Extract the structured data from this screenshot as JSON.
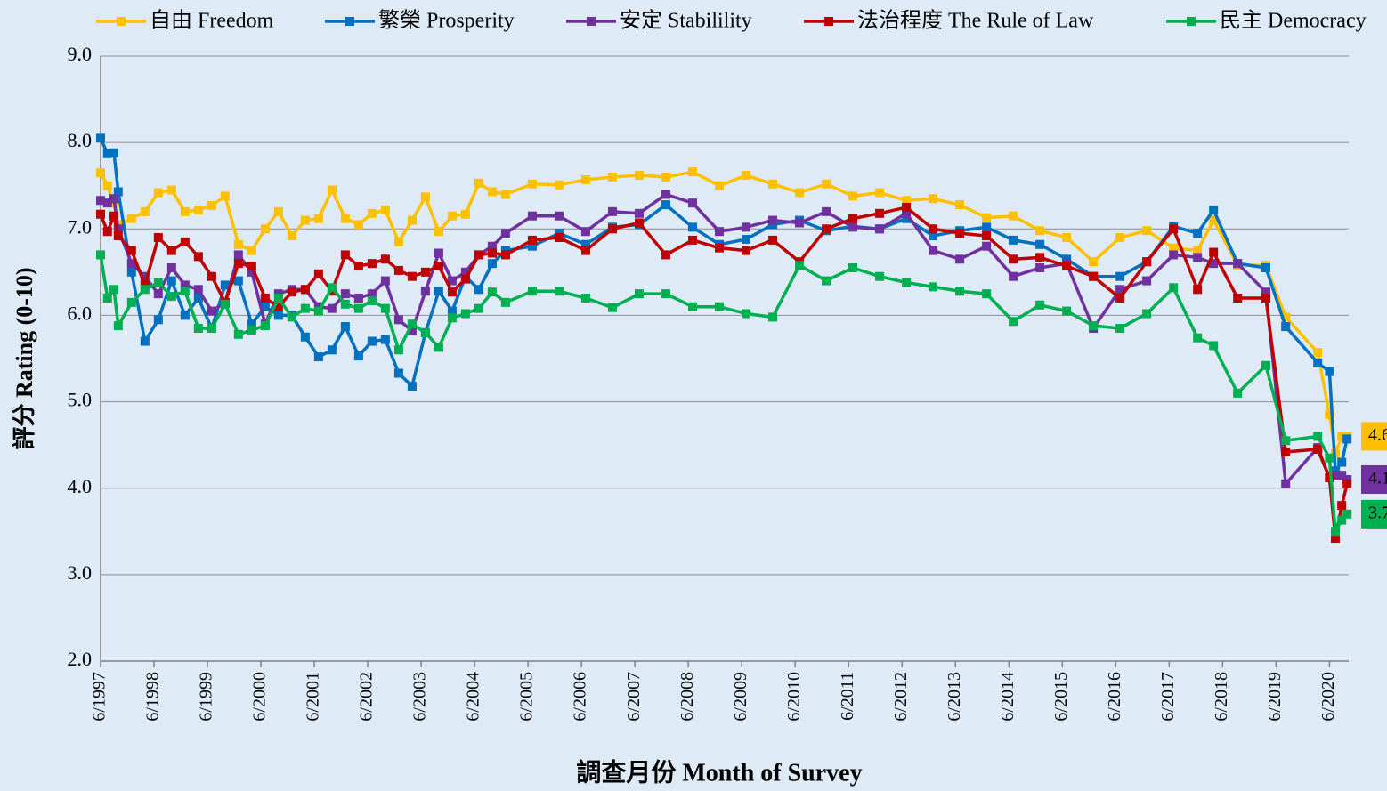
{
  "chart_data": {
    "type": "line",
    "x_label": "調查月份 Month of Survey",
    "y_label": "評分 Rating (0-10)",
    "x": [
      1997.42,
      1997.55,
      1997.67,
      1997.75,
      1998.0,
      1998.25,
      1998.5,
      1998.75,
      1999.0,
      1999.25,
      1999.5,
      1999.75,
      2000.0,
      2000.25,
      2000.5,
      2000.75,
      2001.0,
      2001.25,
      2001.5,
      2001.75,
      2002.0,
      2002.25,
      2002.5,
      2002.75,
      2003.0,
      2003.25,
      2003.5,
      2003.75,
      2004.0,
      2004.25,
      2004.5,
      2004.75,
      2005.0,
      2005.5,
      2006.0,
      2006.5,
      2007.0,
      2007.5,
      2008.0,
      2008.5,
      2009.0,
      2009.5,
      2010.0,
      2010.5,
      2011.0,
      2011.5,
      2012.0,
      2012.5,
      2013.0,
      2013.5,
      2014.0,
      2014.5,
      2015.0,
      2015.5,
      2016.0,
      2016.5,
      2017.0,
      2017.5,
      2017.95,
      2018.25,
      2018.7,
      2019.23,
      2019.6,
      2020.2,
      2020.42,
      2020.53,
      2020.65,
      2020.75
    ],
    "series": [
      {
        "name": "自由 Freedom",
        "color": "#ffc000",
        "label_last": true,
        "values": [
          7.65,
          7.5,
          7.3,
          7.05,
          7.12,
          7.2,
          7.42,
          7.45,
          7.2,
          7.22,
          7.27,
          7.38,
          6.82,
          6.75,
          7.0,
          7.2,
          6.92,
          7.1,
          7.12,
          7.45,
          7.12,
          7.05,
          7.18,
          7.22,
          6.85,
          7.1,
          7.37,
          6.97,
          7.15,
          7.17,
          7.53,
          7.43,
          7.4,
          7.52,
          7.51,
          7.57,
          7.6,
          7.62,
          7.6,
          7.66,
          7.5,
          7.62,
          7.52,
          7.42,
          7.52,
          7.38,
          7.42,
          7.33,
          7.35,
          7.28,
          7.13,
          7.15,
          6.98,
          6.9,
          6.62,
          6.9,
          6.98,
          6.78,
          6.75,
          7.1,
          6.58,
          6.58,
          5.98,
          5.57,
          4.85,
          4.4,
          4.6,
          4.6
        ]
      },
      {
        "name": "繁榮 Prosperity",
        "color": "#0070c0",
        "label_last": false,
        "values": [
          8.05,
          7.87,
          7.88,
          7.43,
          6.5,
          5.7,
          5.95,
          6.4,
          6.0,
          6.2,
          5.85,
          6.35,
          6.4,
          5.9,
          6.1,
          6.0,
          6.0,
          5.75,
          5.52,
          5.6,
          5.87,
          5.53,
          5.7,
          5.72,
          5.33,
          5.18,
          5.8,
          6.28,
          6.05,
          6.45,
          6.3,
          6.6,
          6.75,
          6.8,
          6.95,
          6.82,
          7.02,
          7.05,
          7.28,
          7.02,
          6.82,
          6.88,
          7.05,
          7.1,
          6.98,
          7.03,
          7.0,
          7.12,
          6.92,
          6.98,
          7.02,
          6.87,
          6.82,
          6.65,
          6.45,
          6.45,
          6.62,
          7.03,
          6.95,
          7.22,
          6.6,
          6.55,
          5.87,
          5.45,
          5.35,
          4.2,
          4.3,
          4.57
        ]
      },
      {
        "name": "安定 Stabilility",
        "color": "#7030a0",
        "label_last": true,
        "values": [
          7.33,
          7.3,
          7.35,
          7.0,
          6.6,
          6.45,
          6.25,
          6.55,
          6.35,
          6.3,
          6.05,
          6.15,
          6.7,
          6.5,
          5.9,
          6.25,
          6.3,
          6.3,
          6.1,
          6.08,
          6.25,
          6.2,
          6.25,
          6.4,
          5.95,
          5.82,
          6.28,
          6.72,
          6.4,
          6.5,
          6.7,
          6.8,
          6.95,
          7.15,
          7.15,
          6.97,
          7.2,
          7.18,
          7.4,
          7.3,
          6.97,
          7.02,
          7.1,
          7.07,
          7.2,
          7.02,
          7.0,
          7.18,
          6.75,
          6.65,
          6.8,
          6.45,
          6.55,
          6.6,
          5.85,
          6.3,
          6.4,
          6.7,
          6.67,
          6.6,
          6.6,
          6.27,
          4.05,
          4.47,
          4.12,
          4.15,
          4.15,
          4.1
        ]
      },
      {
        "name": "法治程度 The Rule of Law",
        "color": "#c00000",
        "label_last": false,
        "values": [
          7.17,
          6.97,
          7.15,
          6.92,
          6.75,
          6.35,
          6.9,
          6.75,
          6.85,
          6.68,
          6.45,
          6.15,
          6.6,
          6.57,
          6.2,
          6.1,
          6.27,
          6.3,
          6.48,
          6.28,
          6.7,
          6.57,
          6.6,
          6.65,
          6.52,
          6.45,
          6.5,
          6.57,
          6.27,
          6.42,
          6.7,
          6.72,
          6.7,
          6.87,
          6.9,
          6.75,
          7.0,
          7.07,
          6.7,
          6.87,
          6.78,
          6.75,
          6.87,
          6.62,
          7.0,
          7.12,
          7.18,
          7.25,
          7.0,
          6.95,
          6.92,
          6.65,
          6.67,
          6.57,
          6.45,
          6.2,
          6.62,
          7.0,
          6.3,
          6.73,
          6.2,
          6.2,
          4.42,
          4.45,
          4.12,
          3.42,
          3.8,
          4.05
        ]
      },
      {
        "name": "民主 Democracy",
        "color": "#00b050",
        "label_last": true,
        "values": [
          6.7,
          6.2,
          6.3,
          5.88,
          6.15,
          6.3,
          6.38,
          6.22,
          6.28,
          5.85,
          5.85,
          6.13,
          5.78,
          5.83,
          5.88,
          6.2,
          5.98,
          6.08,
          6.05,
          6.32,
          6.13,
          6.08,
          6.17,
          6.08,
          5.6,
          5.9,
          5.8,
          5.63,
          5.97,
          6.02,
          6.08,
          6.27,
          6.15,
          6.28,
          6.28,
          6.2,
          6.09,
          6.25,
          6.25,
          6.1,
          6.1,
          6.02,
          5.98,
          6.58,
          6.4,
          6.55,
          6.45,
          6.38,
          6.33,
          6.28,
          6.25,
          5.93,
          6.12,
          6.05,
          5.88,
          5.85,
          6.02,
          6.32,
          5.74,
          5.65,
          5.1,
          5.42,
          4.55,
          4.6,
          4.35,
          3.5,
          3.63,
          3.7
        ]
      }
    ],
    "xlim": [
      1997.42,
      2020.78
    ],
    "xticks": [
      {
        "value": 1997.42,
        "label": "6/1997"
      },
      {
        "value": 1998.42,
        "label": "6/1998"
      },
      {
        "value": 1999.42,
        "label": "6/1999"
      },
      {
        "value": 2000.42,
        "label": "6/2000"
      },
      {
        "value": 2001.42,
        "label": "6/2001"
      },
      {
        "value": 2002.42,
        "label": "6/2002"
      },
      {
        "value": 2003.42,
        "label": "6/2003"
      },
      {
        "value": 2004.42,
        "label": "6/2004"
      },
      {
        "value": 2005.42,
        "label": "6/2005"
      },
      {
        "value": 2006.42,
        "label": "6/2006"
      },
      {
        "value": 2007.42,
        "label": "6/2007"
      },
      {
        "value": 2008.42,
        "label": "6/2008"
      },
      {
        "value": 2009.42,
        "label": "6/2009"
      },
      {
        "value": 2010.42,
        "label": "6/2010"
      },
      {
        "value": 2011.42,
        "label": "6/2011"
      },
      {
        "value": 2012.42,
        "label": "6/2012"
      },
      {
        "value": 2013.42,
        "label": "6/2013"
      },
      {
        "value": 2014.42,
        "label": "6/2014"
      },
      {
        "value": 2015.42,
        "label": "6/2015"
      },
      {
        "value": 2016.42,
        "label": "6/2016"
      },
      {
        "value": 2017.42,
        "label": "6/2017"
      },
      {
        "value": 2018.42,
        "label": "6/2018"
      },
      {
        "value": 2019.42,
        "label": "6/2019"
      },
      {
        "value": 2020.42,
        "label": "6/2020"
      }
    ],
    "ylim": [
      2,
      9
    ],
    "yticks": [
      {
        "value": 2,
        "label": "2.0"
      },
      {
        "value": 3,
        "label": "3.0"
      },
      {
        "value": 4,
        "label": "4.0"
      },
      {
        "value": 5,
        "label": "5.0"
      },
      {
        "value": 6,
        "label": "6.0"
      },
      {
        "value": 7,
        "label": "7.0"
      },
      {
        "value": 8,
        "label": "8.0"
      },
      {
        "value": 9,
        "label": "9.0"
      }
    ],
    "grid": true,
    "legend": "top"
  }
}
